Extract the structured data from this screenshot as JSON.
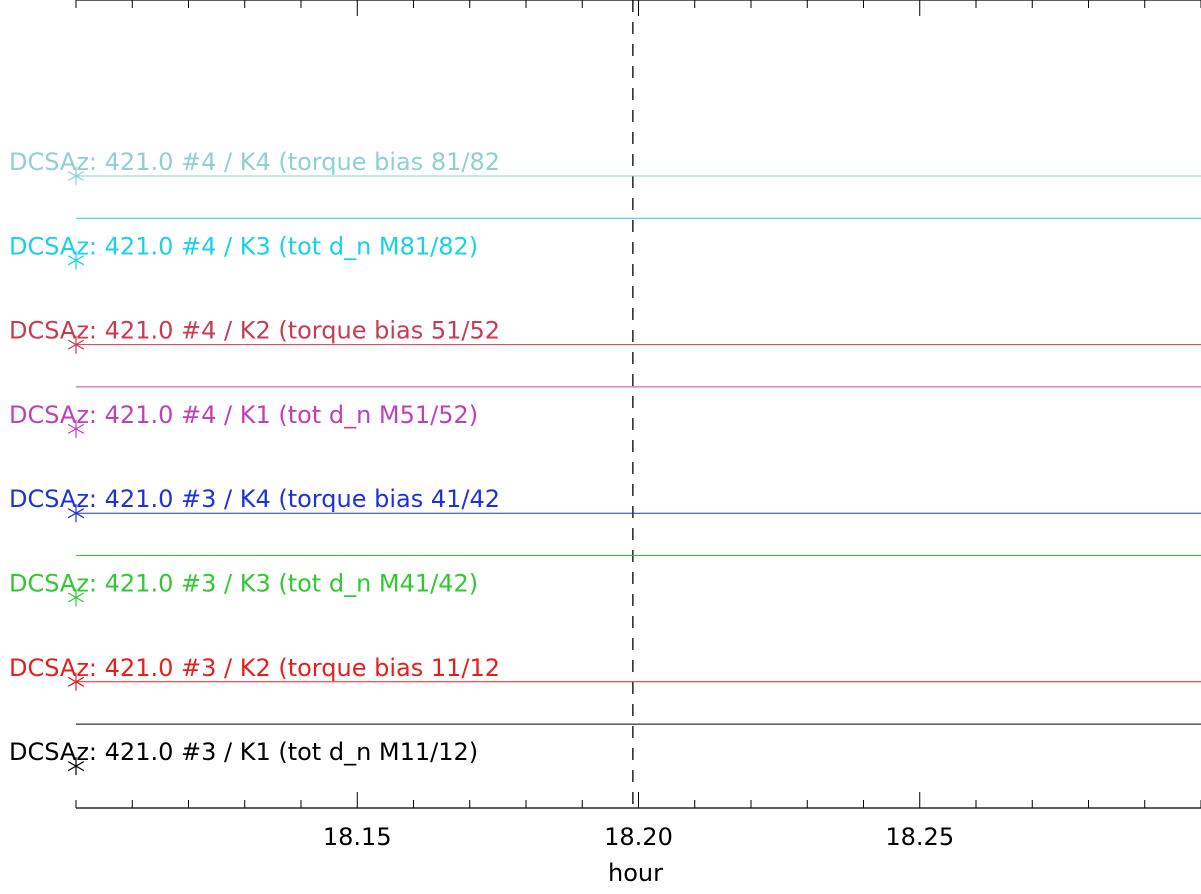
{
  "chart_data": {
    "type": "line",
    "title": "",
    "xlabel": "hour",
    "ylabel": "",
    "x_range": [
      18.1,
      18.3
    ],
    "x_ticks_major": [
      18.15,
      18.2,
      18.25
    ],
    "x_tick_labels": [
      "18.15",
      "18.20",
      "18.25"
    ],
    "x_ticks_minor_step": 0.01,
    "marker_line": {
      "x": 18.199,
      "style": "dashed",
      "color": "#000000"
    },
    "series": [
      {
        "name": "DCSAz: 421.0 #4 / K4 (torque bias 81/82",
        "color": "#8fd0d0",
        "marker_x": 18.1,
        "segments": [
          {
            "x": [
              18.1,
              18.3
            ],
            "offset": 0
          }
        ]
      },
      {
        "name": "DCSAz: 421.0 #4 / K3 (tot d_n M81/82)",
        "color": "#19d2e6",
        "marker_x": 18.1,
        "segments": [
          {
            "x": [
              18.1,
              18.3
            ],
            "offset": 1
          }
        ]
      },
      {
        "name": "DCSAz: 421.0 #4 / K2 (torque bias 51/52",
        "color": "#c83c50",
        "marker_x": 18.1,
        "segments": [
          {
            "x": [
              18.1,
              18.3
            ],
            "offset": 0
          }
        ]
      },
      {
        "name": "DCSAz: 421.0 #4 / K1 (tot d_n M51/52)",
        "color": "#c040b8",
        "marker_x": 18.1,
        "segments": [
          {
            "x": [
              18.1,
              18.3
            ],
            "offset": 1
          }
        ]
      },
      {
        "name": "DCSAz: 421.0 #3 / K4 (torque bias 41/42",
        "color": "#1e32dc",
        "marker_x": 18.1,
        "segments": [
          {
            "x": [
              18.1,
              18.3
            ],
            "offset": 0
          }
        ]
      },
      {
        "name": "DCSAz: 421.0 #3 / K3 (tot d_n M41/42)",
        "color": "#32c832",
        "marker_x": 18.1,
        "segments": [
          {
            "x": [
              18.1,
              18.3
            ],
            "offset": 1
          }
        ]
      },
      {
        "name": "DCSAz: 421.0 #3 / K2 (torque bias 11/12",
        "color": "#e61e1e",
        "marker_x": 18.1,
        "segments": [
          {
            "x": [
              18.1,
              18.3
            ],
            "offset": 0
          }
        ]
      },
      {
        "name": "DCSAz: 421.0 #3 / K1 (tot d_n M11/12)",
        "color": "#000000",
        "marker_x": 18.1,
        "segments": [
          {
            "x": [
              18.1,
              18.3
            ],
            "offset": 1
          }
        ]
      }
    ]
  }
}
